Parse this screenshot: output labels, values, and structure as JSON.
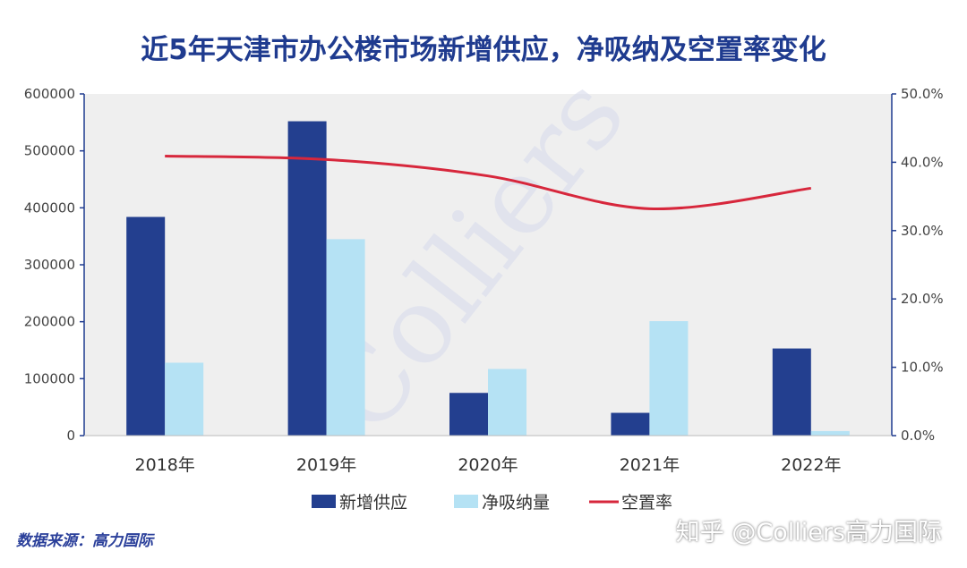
{
  "title": "近5年天津市办公楼市场新增供应，净吸纳及空置率变化",
  "watermark": "Colliers",
  "source": "数据来源：高力国际",
  "credit": "知乎 @Colliers高力国际",
  "colors": {
    "supply": "#233f8f",
    "absorption": "#b5e2f4",
    "vacancy": "#d7273c",
    "plot_bg": "#efefef",
    "axis": "#1f3b8f",
    "title": "#1f3b8f"
  },
  "chart_data": {
    "type": "bar",
    "categories": [
      "2018年",
      "2019年",
      "2020年",
      "2021年",
      "2022年"
    ],
    "series": [
      {
        "name": "新增供应",
        "type": "bar",
        "axis": "left",
        "values": [
          384000,
          552000,
          75000,
          40000,
          153000
        ]
      },
      {
        "name": "净吸纳量",
        "type": "bar",
        "axis": "left",
        "values": [
          128000,
          345000,
          117000,
          201000,
          8000
        ]
      },
      {
        "name": "空置率",
        "type": "line",
        "axis": "right",
        "values": [
          0.409,
          0.404,
          0.38,
          0.332,
          0.362
        ]
      }
    ],
    "y_left": {
      "ylim": [
        0,
        600000
      ],
      "ticks": [
        "0",
        "100000",
        "200000",
        "300000",
        "400000",
        "500000",
        "600000"
      ]
    },
    "y_right": {
      "ylim": [
        0,
        0.5
      ],
      "ticks": [
        "0.0%",
        "10.0%",
        "20.0%",
        "30.0%",
        "40.0%",
        "50.0%"
      ]
    },
    "legend": {
      "position": "bottom",
      "entries": [
        "新增供应",
        "净吸纳量",
        "空置率"
      ]
    },
    "grid": false
  }
}
